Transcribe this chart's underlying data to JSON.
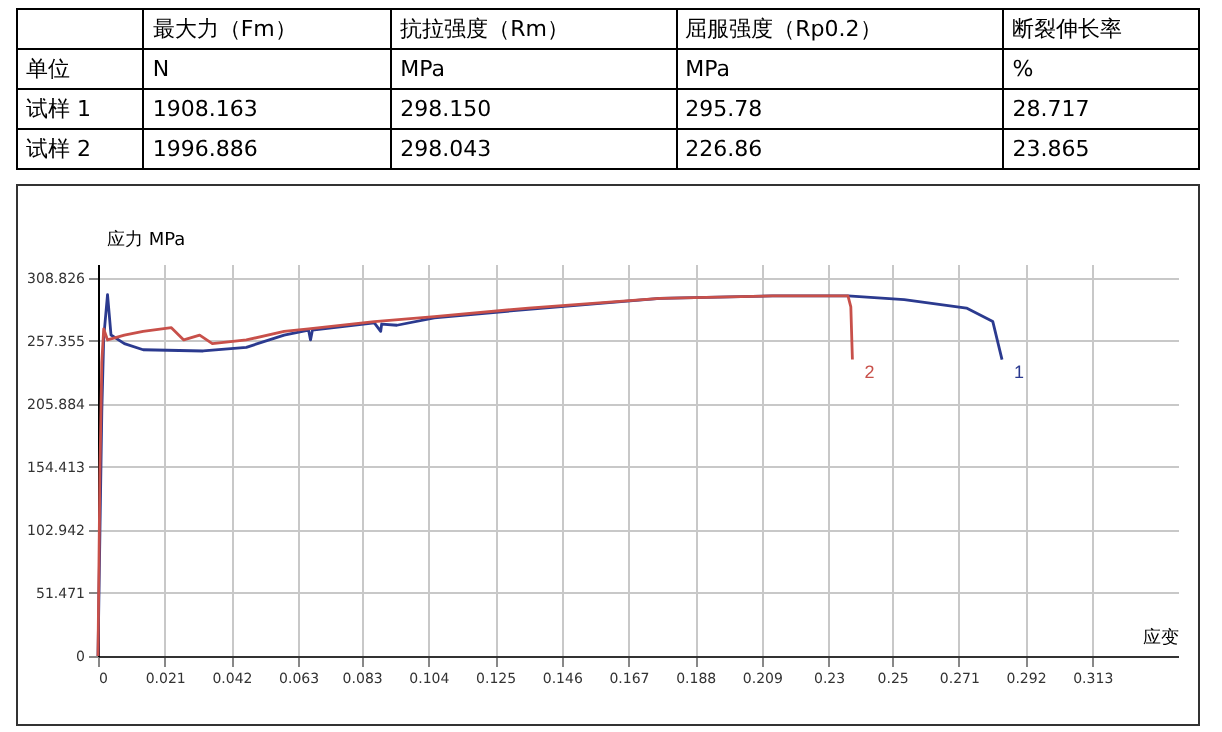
{
  "chart_data": [
    {
      "type": "other",
      "categories": [
        null,
        "最大力（Fm）",
        "抗拉强度（Rm）",
        "屈服强度（Rp0.2）",
        "断裂伸长率"
      ],
      "y_categories": [
        "单位",
        "试样 1",
        "试样 2"
      ],
      "cell_labels": [
        [
          "N",
          "MPa",
          "MPa",
          "%"
        ],
        [
          "1908.163",
          "298.150",
          "295.78",
          "28.717"
        ],
        [
          "1996.886",
          "298.043",
          "226.86",
          "23.865"
        ]
      ]
    },
    {
      "type": "line",
      "xlabel": "应变",
      "ylabel": "应力 MPa",
      "xlim": [
        0,
        0.34
      ],
      "ylim": [
        0,
        320
      ],
      "xticks": [
        0,
        0.021,
        0.042,
        0.063,
        0.083,
        0.104,
        0.125,
        0.146,
        0.167,
        0.188,
        0.209,
        0.23,
        0.25,
        0.271,
        0.292,
        0.313
      ],
      "yticks": [
        0,
        51.471,
        102.942,
        154.413,
        205.884,
        257.355,
        308.826
      ],
      "grid": true,
      "series": [
        {
          "name": "1",
          "color": "#2b3a8f",
          "x": [
            0,
            0.0006,
            0.0012,
            0.0018,
            0.003,
            0.0041,
            0.0083,
            0.0142,
            0.0331,
            0.0467,
            0.0586,
            0.0663,
            0.0669,
            0.0675,
            0.087,
            0.089,
            0.0893,
            0.0941,
            0.1059,
            0.1355,
            0.1769,
            0.2124,
            0.2361,
            0.2538,
            0.2734,
            0.2817,
            0.2846
          ],
          "values": [
            0,
            100,
            200,
            260,
            295,
            262,
            255,
            250,
            249,
            252,
            262,
            266,
            258,
            266,
            272,
            265,
            271,
            270,
            276,
            283,
            292,
            294,
            294,
            291,
            284,
            273,
            242
          ]
        },
        {
          "name": "2",
          "color": "#c8504a",
          "x": [
            0,
            0.0006,
            0.0012,
            0.0018,
            0.003,
            0.0083,
            0.0142,
            0.0231,
            0.027,
            0.032,
            0.036,
            0.0467,
            0.0586,
            0.0663,
            0.087,
            0.1059,
            0.1355,
            0.1769,
            0.2124,
            0.2361,
            0.237,
            0.2375
          ],
          "values": [
            0,
            150,
            240,
            267,
            258,
            262,
            265,
            268,
            258,
            262,
            255,
            258,
            265,
            267,
            273,
            277,
            284,
            292,
            294,
            294,
            285,
            242
          ]
        }
      ]
    }
  ]
}
